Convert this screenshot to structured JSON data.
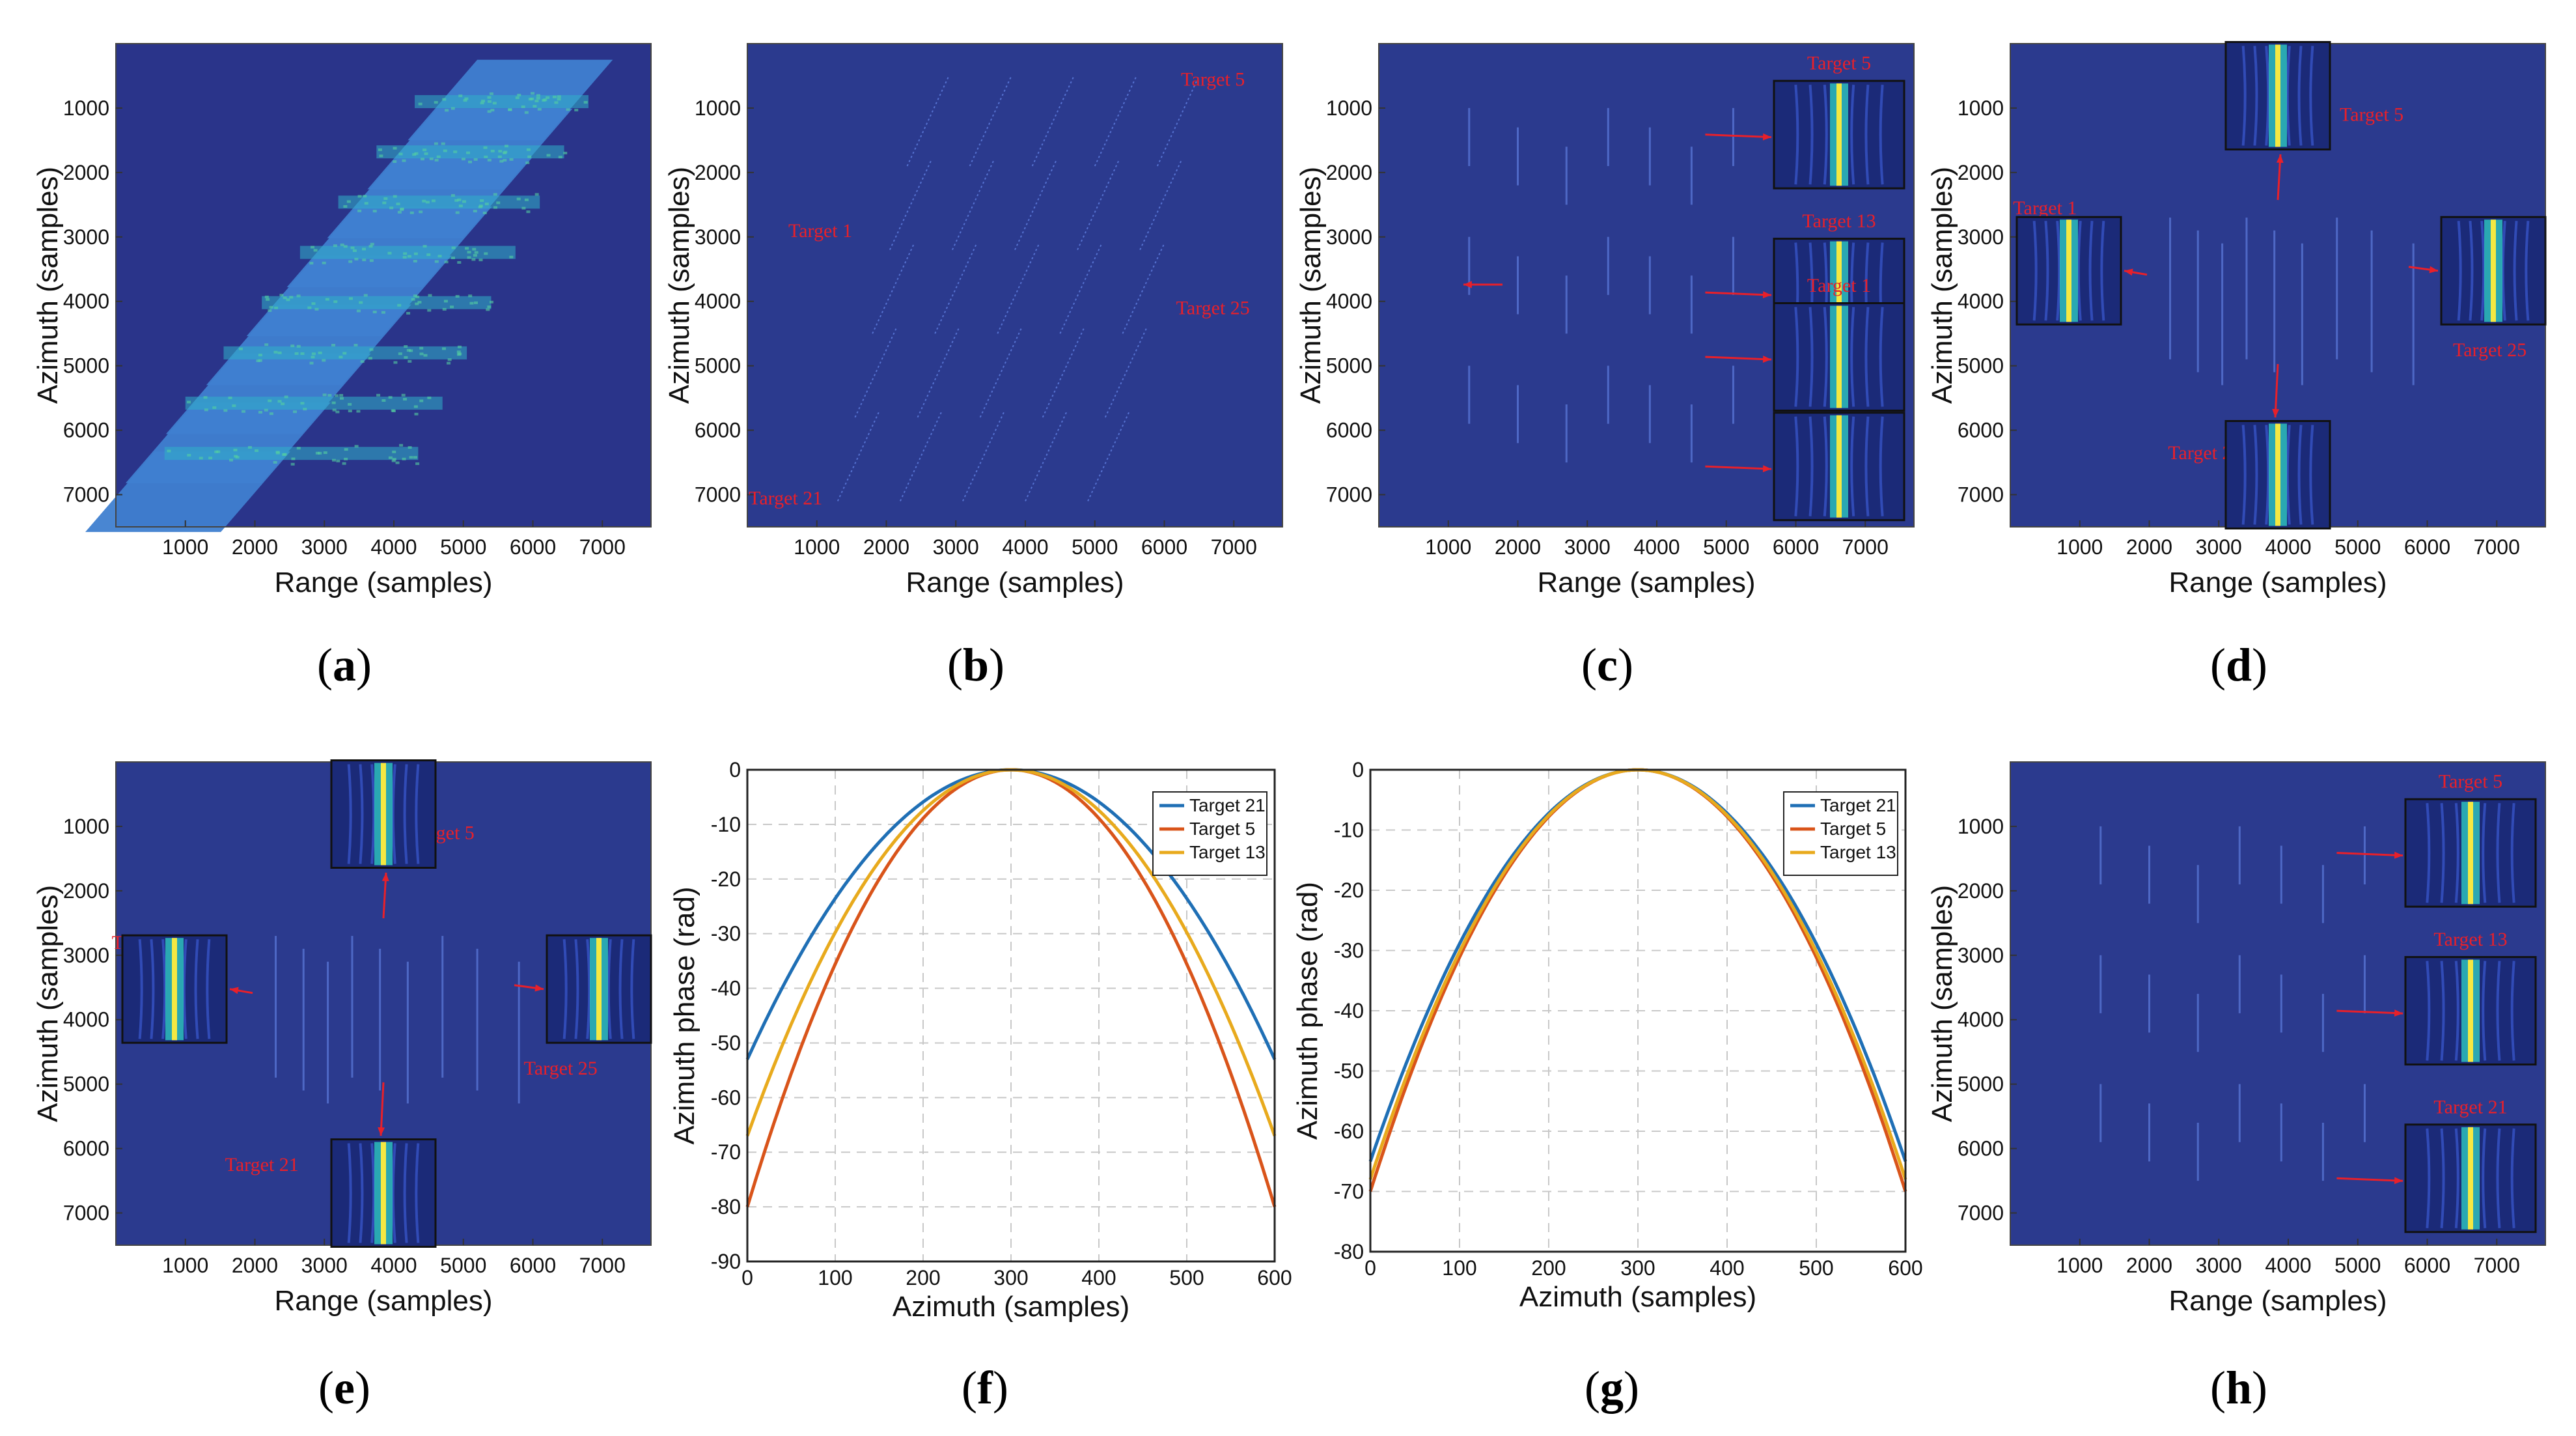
{
  "colors": {
    "background": "#2b3a8e",
    "patch": "#3f7fd0",
    "patch_band": "#2fb0c8",
    "target_line": "#5a78d8",
    "annotation": "#e8202a",
    "inset_bg": "#1b2a78",
    "inset_line": "#f4e842",
    "series_blue": "#1f6fb5",
    "series_orange": "#d9541a",
    "series_yellow": "#e8aa1d",
    "grid": "#c8c8c8"
  },
  "panels": [
    {
      "id": "a",
      "caption": "a",
      "chart_data": {
        "type": "heatmap",
        "xlabel": "Range (samples)",
        "ylabel": "Azimuth (samples)",
        "xticks": [
          1000,
          2000,
          3000,
          4000,
          5000,
          6000,
          7000
        ],
        "yticks": [
          1000,
          2000,
          3000,
          4000,
          5000,
          6000,
          7000
        ],
        "xlim": [
          0,
          7700
        ],
        "ylim": [
          0,
          7500
        ],
        "annotations": []
      }
    },
    {
      "id": "b",
      "caption": "b",
      "chart_data": {
        "type": "heatmap",
        "xlabel": "Range (samples)",
        "ylabel": "Azimuth (samples)",
        "xticks": [
          1000,
          2000,
          3000,
          4000,
          5000,
          6000,
          7000
        ],
        "yticks": [
          1000,
          2000,
          3000,
          4000,
          5000,
          6000,
          7000
        ],
        "xlim": [
          0,
          7700
        ],
        "ylim": [
          0,
          7500
        ],
        "annotations": [
          {
            "label": "Target 5",
            "x": 6700,
            "y": 650
          },
          {
            "label": "Target 1",
            "x": 1050,
            "y": 3000
          },
          {
            "label": "Target 25",
            "x": 6700,
            "y": 4200
          },
          {
            "label": "Target 21",
            "x": 550,
            "y": 7150
          }
        ]
      }
    },
    {
      "id": "c",
      "caption": "c",
      "chart_data": {
        "type": "heatmap",
        "xlabel": "Range (samples)",
        "ylabel": "Azimuth (samples)",
        "xticks": [
          1000,
          2000,
          3000,
          4000,
          5000,
          6000,
          7000
        ],
        "yticks": [
          1000,
          2000,
          3000,
          4000,
          5000,
          6000,
          7000
        ],
        "xlim": [
          0,
          7700
        ],
        "ylim": [
          0,
          7500
        ],
        "annotations": [
          {
            "label": "Target 5",
            "x": 6500,
            "y": 300
          },
          {
            "label": "Target 13",
            "x": 6500,
            "y": 2750
          },
          {
            "label": "Target 21",
            "x": 6500,
            "y": 5450
          },
          {
            "label": "Target 1",
            "x": 200,
            "y": 3750
          }
        ]
      }
    },
    {
      "id": "d",
      "caption": "d",
      "chart_data": {
        "type": "heatmap",
        "xlabel": "Range (samples)",
        "ylabel": "Azimuth (samples)",
        "xticks": [
          1000,
          2000,
          3000,
          4000,
          5000,
          6000,
          7000
        ],
        "yticks": [
          1000,
          2000,
          3000,
          4000,
          5000,
          6000,
          7000
        ],
        "xlim": [
          0,
          7700
        ],
        "ylim": [
          0,
          7500
        ],
        "annotations": [
          {
            "label": "Target 5",
            "x": 5200,
            "y": 1200
          },
          {
            "label": "Target 1",
            "x": 500,
            "y": 2650
          },
          {
            "label": "Target 25",
            "x": 6900,
            "y": 4850
          },
          {
            "label": "Target 21",
            "x": 2800,
            "y": 6450
          }
        ]
      }
    },
    {
      "id": "e",
      "caption": "e",
      "chart_data": {
        "type": "heatmap",
        "xlabel": "Range (samples)",
        "ylabel": "Azimuth (samples)",
        "xticks": [
          1000,
          2000,
          3000,
          4000,
          5000,
          6000,
          7000
        ],
        "yticks": [
          1000,
          2000,
          3000,
          4000,
          5000,
          6000,
          7000
        ],
        "xlim": [
          0,
          7700
        ],
        "ylim": [
          0,
          7500
        ],
        "annotations": [
          {
            "label": "Target 5",
            "x": 4700,
            "y": 1200
          },
          {
            "label": "Target 1",
            "x": 400,
            "y": 2900
          },
          {
            "label": "Target 25",
            "x": 6400,
            "y": 4850
          },
          {
            "label": "Target 21",
            "x": 2100,
            "y": 6350
          }
        ]
      }
    },
    {
      "id": "f",
      "caption": "f",
      "chart_data": {
        "type": "line",
        "xlabel": "Azimuth (samples)",
        "ylabel": "Azimuth phase (rad)",
        "xlim": [
          0,
          600
        ],
        "ylim": [
          -90,
          0
        ],
        "xticks": [
          0,
          100,
          200,
          300,
          400,
          500,
          600
        ],
        "yticks": [
          0,
          -10,
          -20,
          -30,
          -40,
          -50,
          -60,
          -70,
          -80,
          -90
        ],
        "grid": true,
        "legend": "top-right",
        "series": [
          {
            "name": "Target 21",
            "vertex": 300,
            "endpoint_value": -53,
            "color_key": "series_blue"
          },
          {
            "name": "Target 5",
            "vertex": 300,
            "endpoint_value": -80,
            "color_key": "series_orange"
          },
          {
            "name": "Target 13",
            "vertex": 300,
            "endpoint_value": -67,
            "color_key": "series_yellow"
          }
        ]
      }
    },
    {
      "id": "g",
      "caption": "g",
      "chart_data": {
        "type": "line",
        "xlabel": "Azimuth (samples)",
        "ylabel": "Azimuth phase (rad)",
        "xlim": [
          0,
          600
        ],
        "ylim": [
          -80,
          0
        ],
        "xticks": [
          0,
          100,
          200,
          300,
          400,
          500,
          600
        ],
        "yticks": [
          0,
          -10,
          -20,
          -30,
          -40,
          -50,
          -60,
          -70,
          -80
        ],
        "grid": true,
        "legend": "top-right",
        "series": [
          {
            "name": "Target 21",
            "vertex": 300,
            "endpoint_value": -65,
            "color_key": "series_blue"
          },
          {
            "name": "Target 5",
            "vertex": 300,
            "endpoint_value": -70,
            "color_key": "series_orange"
          },
          {
            "name": "Target 13",
            "vertex": 300,
            "endpoint_value": -68,
            "color_key": "series_yellow"
          }
        ]
      }
    },
    {
      "id": "h",
      "caption": "h",
      "chart_data": {
        "type": "heatmap",
        "xlabel": "Range (samples)",
        "ylabel": "Azimuth (samples)",
        "xticks": [
          1000,
          2000,
          3000,
          4000,
          5000,
          6000,
          7000
        ],
        "yticks": [
          1000,
          2000,
          3000,
          4000,
          5000,
          6000,
          7000
        ],
        "xlim": [
          0,
          7700
        ],
        "ylim": [
          0,
          7500
        ],
        "annotations": [
          {
            "label": "Target 5",
            "x": 6500,
            "y": 300
          },
          {
            "label": "Target 13",
            "x": 6500,
            "y": 2750
          },
          {
            "label": "Target 21",
            "x": 6500,
            "y": 5350
          }
        ]
      }
    }
  ]
}
